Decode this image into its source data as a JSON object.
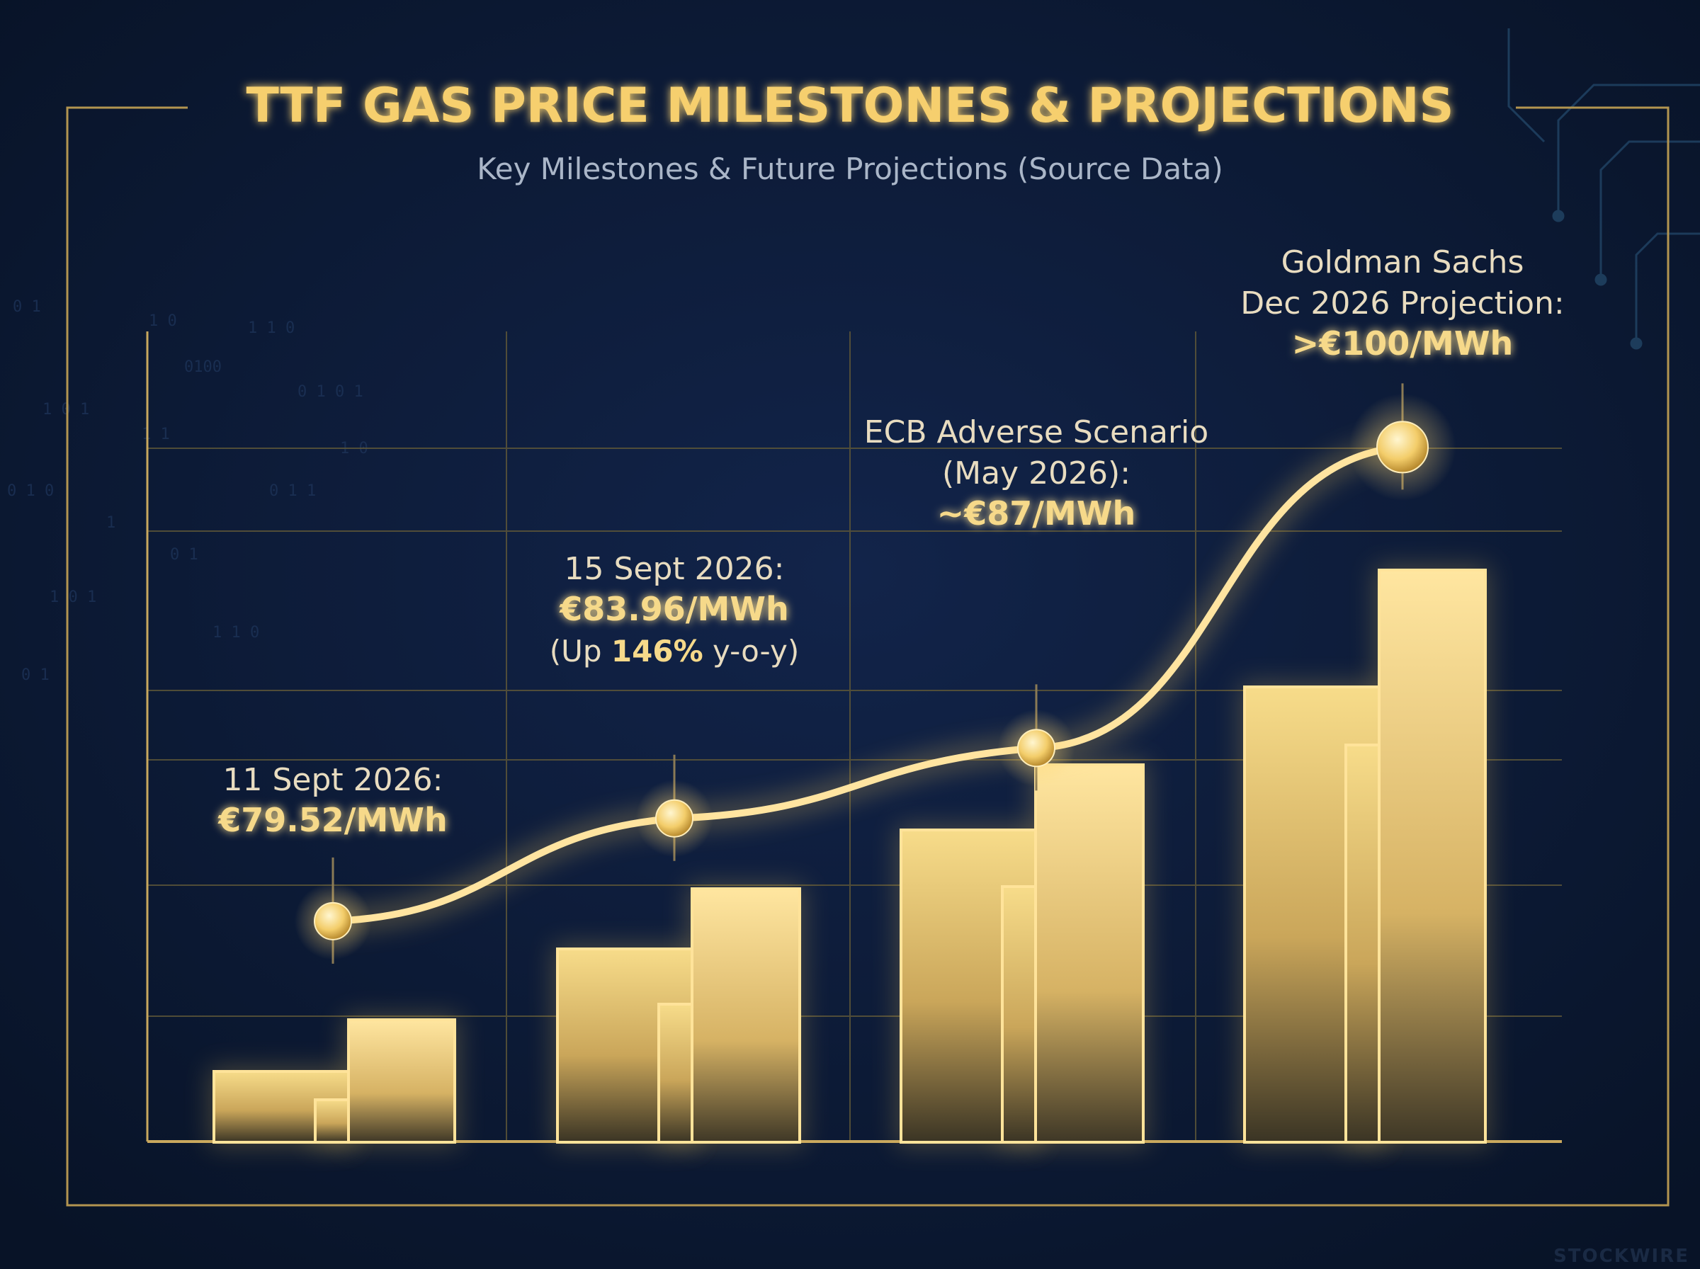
{
  "title": "TTF GAS PRICE MILESTONES & PROJECTIONS",
  "subtitle": "Key Milestones & Future Projections (Source Data)",
  "watermark": "STOCKWIRE",
  "colors": {
    "background": "#0c1a33",
    "gold": "#f2c75c",
    "gold_light": "#ffe9a8",
    "gold_text": "#f6d98a",
    "label_text": "#e8dcc0",
    "subtitle_text": "#aab6c8",
    "frame": "#b39550",
    "grid": "#6b6440"
  },
  "chart_data": {
    "type": "line",
    "title": "TTF GAS PRICE MILESTONES & PROJECTIONS",
    "subtitle": "Key Milestones & Future Projections (Source Data)",
    "xlabel": "",
    "ylabel": "",
    "grid": true,
    "legend": "none",
    "ylim": [
      70,
      105
    ],
    "series": [
      {
        "points": [
          {
            "date": "2026-09-11",
            "value": 79.52
          },
          {
            "date": "2026-09-15",
            "value": 83.96
          },
          {
            "date": "2026-05",
            "value": 87
          },
          {
            "date": "2026-12",
            "value": 100
          }
        ]
      }
    ],
    "annotations": [
      {
        "lines": [
          "11 Sept 2026:"
        ],
        "value_text": "€79.52/MWh",
        "extra": null
      },
      {
        "lines": [
          "15 Sept 2026:"
        ],
        "value_text": "€83.96/MWh",
        "extra": {
          "pre": "(Up ",
          "bold": "146%",
          "post": " y-o-y)"
        }
      },
      {
        "lines": [
          "ECB Adverse Scenario",
          "(May 2026):"
        ],
        "value_text": "~€87/MWh",
        "extra": null
      },
      {
        "lines": [
          "Goldman Sachs",
          "Dec 2026 Projection:"
        ],
        "value_text": ">€100/MWh",
        "extra": null
      }
    ],
    "decorative_bars": "unlabelled stepped gold bars under each milestone, rising left to right"
  }
}
